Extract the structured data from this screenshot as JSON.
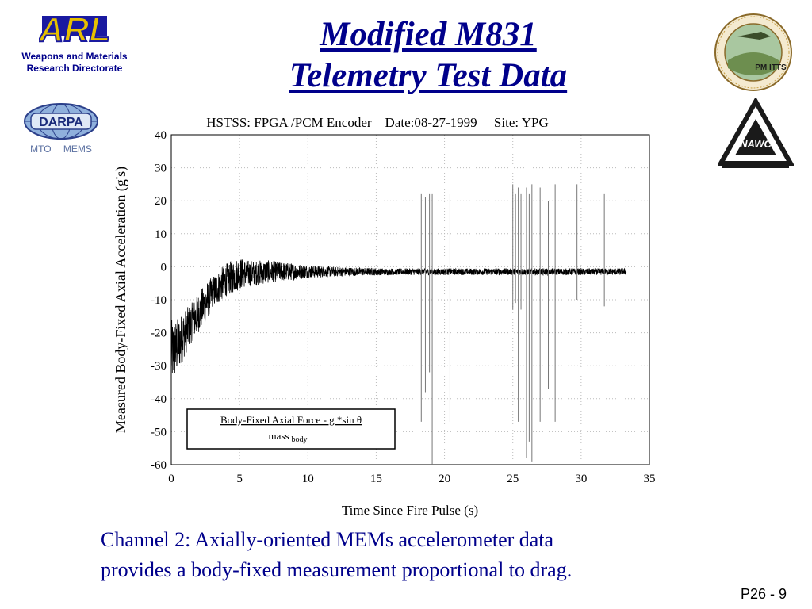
{
  "slide": {
    "title_line1": "Modified M831",
    "title_line2": "Telemetry Test Data",
    "caption_line1": "Channel 2: Axially-oriented MEMs accelerometer data",
    "caption_line2": "provides a body-fixed measurement proportional to drag.",
    "page_number": "P26 - 9"
  },
  "logos": {
    "arl_text": "ARL",
    "arl_caption_line1": "Weapons and Materials",
    "arl_caption_line2": "Research Directorate",
    "darpa_text": "DARPA",
    "darpa_sub_left": "MTO",
    "darpa_sub_right": "MEMS",
    "pmitts_text": "PM ITTS",
    "nawc_text": "NAWC"
  },
  "colors": {
    "title": "#00008b",
    "caption": "#00008b",
    "trace": "#000000",
    "spikes": "#777777"
  },
  "chart_data": {
    "type": "line",
    "header": "HSTSS: FPGA /PCM Encoder    Date:08-27-1999     Site: YPG",
    "xlabel": "Time Since Fire Pulse (s)",
    "ylabel": "Measured Body-Fixed Axial Acceleration (g's)",
    "xlim": [
      0,
      35
    ],
    "ylim": [
      -60,
      40
    ],
    "xticks": [
      0,
      5,
      10,
      15,
      20,
      25,
      30,
      35
    ],
    "yticks": [
      40,
      30,
      20,
      10,
      0,
      -10,
      -20,
      -30,
      -40,
      -50,
      -60
    ],
    "grid": true,
    "annotation": {
      "numerator": "Body-Fixed Axial Force - g *sin θ",
      "denominator": "mass",
      "denominator_sub": "body"
    },
    "series": [
      {
        "style": "noisy-band",
        "x": [
          0,
          0.3,
          0.6,
          1.0,
          1.5,
          2.0,
          2.5,
          3.0,
          3.5,
          4.0,
          4.5,
          5.0,
          5.5,
          6.0,
          7.0,
          8.0,
          9.0,
          10.0,
          12.0,
          14.0,
          16.0,
          18.0,
          20.0,
          22.0,
          24.0,
          26.0,
          28.0,
          30.0,
          32.0,
          33.3
        ],
        "y": [
          -26,
          -25,
          -23,
          -20,
          -17,
          -14,
          -11,
          -8,
          -6,
          -4,
          -3,
          -2,
          -2,
          -2,
          -1.5,
          -1.5,
          -1.5,
          -1.5,
          -1.5,
          -1.5,
          -1.5,
          -1.5,
          -1.5,
          -1.5,
          -1.5,
          -1.5,
          -1.5,
          -1.5,
          -1.5,
          -1.5
        ],
        "noise": [
          10,
          9,
          8,
          7,
          6,
          6,
          6,
          5,
          5,
          5,
          5,
          5,
          4,
          4,
          3.5,
          3,
          2.5,
          2,
          1.5,
          1.2,
          1,
          1,
          1,
          1,
          1,
          1,
          1,
          1,
          1,
          1
        ]
      },
      {
        "style": "spikes",
        "spikes": [
          {
            "x": 18.3,
            "high": 22,
            "low": -47
          },
          {
            "x": 18.6,
            "high": 21,
            "low": -38
          },
          {
            "x": 18.9,
            "high": 22,
            "low": -32
          },
          {
            "x": 19.1,
            "high": 22,
            "low": -60
          },
          {
            "x": 19.3,
            "high": 12,
            "low": -50
          },
          {
            "x": 20.4,
            "high": 22,
            "low": -47
          },
          {
            "x": 25.0,
            "high": 25,
            "low": -13
          },
          {
            "x": 25.2,
            "high": 22,
            "low": -11
          },
          {
            "x": 25.4,
            "high": 24,
            "low": -47
          },
          {
            "x": 25.6,
            "high": 22,
            "low": -13
          },
          {
            "x": 26.0,
            "high": 24,
            "low": -58
          },
          {
            "x": 26.2,
            "high": 22,
            "low": -53
          },
          {
            "x": 26.4,
            "high": 25,
            "low": -59
          },
          {
            "x": 27.0,
            "high": 24,
            "low": -47
          },
          {
            "x": 27.6,
            "high": 20,
            "low": -37
          },
          {
            "x": 28.1,
            "high": 25,
            "low": -47
          },
          {
            "x": 29.7,
            "high": 25,
            "low": -10
          },
          {
            "x": 31.7,
            "high": 22,
            "low": -12
          }
        ]
      }
    ]
  }
}
